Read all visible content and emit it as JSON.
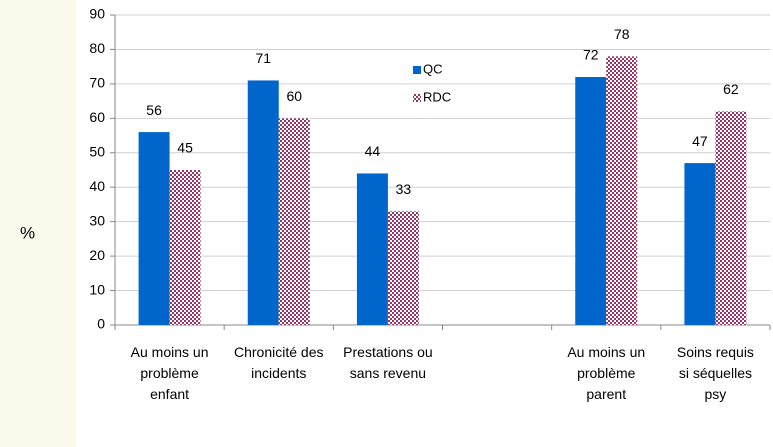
{
  "chart_data": {
    "type": "bar",
    "y_label": "%",
    "categories": [
      "Au moins un problème enfant",
      "Chronicité des incidents",
      "Prestations ou sans revenu",
      null,
      "Au moins un problème parent",
      "Soins requis si séquelles psy"
    ],
    "series": [
      {
        "name": "QC",
        "color": "#0066cc",
        "values": [
          56,
          71,
          44,
          null,
          72,
          47
        ]
      },
      {
        "name": "RDC",
        "color": "#993366",
        "pattern": "checkered",
        "values": [
          45,
          60,
          33,
          null,
          78,
          62
        ]
      }
    ],
    "ylim": [
      0,
      90
    ],
    "yticks": [
      0,
      10,
      20,
      30,
      40,
      50,
      60,
      70,
      80,
      90
    ],
    "grid": true,
    "legend": "top"
  }
}
